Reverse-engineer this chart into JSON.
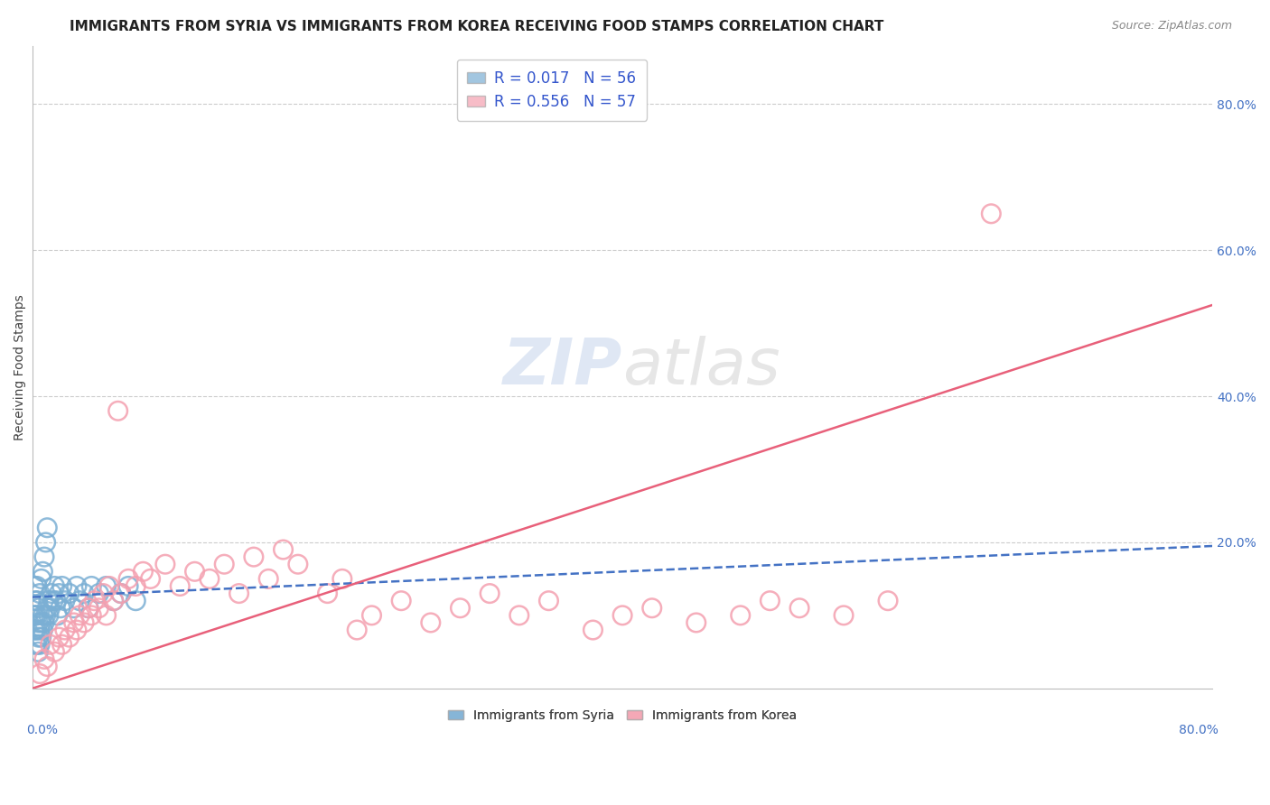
{
  "title": "IMMIGRANTS FROM SYRIA VS IMMIGRANTS FROM KOREA RECEIVING FOOD STAMPS CORRELATION CHART",
  "source": "Source: ZipAtlas.com",
  "ylabel": "Receiving Food Stamps",
  "ylabel_right_ticks": [
    "20.0%",
    "40.0%",
    "60.0%",
    "80.0%"
  ],
  "ylabel_right_vals": [
    0.2,
    0.4,
    0.6,
    0.8
  ],
  "legend_syria": "R =  0.017   N = 56",
  "legend_korea": "R =  0.556   N = 57",
  "legend_label_syria": "Immigrants from Syria",
  "legend_label_korea": "Immigrants from Korea",
  "color_syria": "#7BAFD4",
  "color_korea": "#F4A0B0",
  "color_syria_line": "#4472C4",
  "color_korea_line": "#E8607A",
  "watermark_color": "#D8E4F0",
  "title_fontsize": 11,
  "axis_label_fontsize": 10,
  "xlim": [
    0.0,
    0.8
  ],
  "ylim": [
    0.0,
    0.88
  ],
  "syria_line_x0": 0.0,
  "syria_line_y0": 0.125,
  "syria_line_x1": 0.8,
  "syria_line_y1": 0.195,
  "korea_line_x0": 0.0,
  "korea_line_y0": 0.0,
  "korea_line_x1": 0.8,
  "korea_line_y1": 0.525,
  "syria_x": [
    0.001,
    0.001,
    0.001,
    0.002,
    0.002,
    0.002,
    0.002,
    0.003,
    0.003,
    0.003,
    0.003,
    0.003,
    0.004,
    0.004,
    0.004,
    0.004,
    0.005,
    0.005,
    0.005,
    0.006,
    0.006,
    0.006,
    0.007,
    0.007,
    0.007,
    0.008,
    0.008,
    0.009,
    0.009,
    0.01,
    0.01,
    0.011,
    0.011,
    0.012,
    0.013,
    0.014,
    0.015,
    0.016,
    0.017,
    0.018,
    0.019,
    0.02,
    0.022,
    0.025,
    0.028,
    0.03,
    0.032,
    0.035,
    0.038,
    0.04,
    0.045,
    0.05,
    0.055,
    0.06,
    0.065,
    0.07
  ],
  "syria_y": [
    0.08,
    0.1,
    0.14,
    0.06,
    0.08,
    0.1,
    0.12,
    0.06,
    0.08,
    0.1,
    0.12,
    0.14,
    0.05,
    0.07,
    0.09,
    0.11,
    0.06,
    0.08,
    0.13,
    0.07,
    0.09,
    0.15,
    0.08,
    0.1,
    0.16,
    0.09,
    0.18,
    0.1,
    0.2,
    0.11,
    0.22,
    0.1,
    0.12,
    0.11,
    0.13,
    0.12,
    0.14,
    0.12,
    0.1,
    0.13,
    0.11,
    0.14,
    0.12,
    0.13,
    0.11,
    0.14,
    0.12,
    0.13,
    0.11,
    0.14,
    0.13,
    0.14,
    0.12,
    0.13,
    0.14,
    0.12
  ],
  "korea_x": [
    0.005,
    0.008,
    0.01,
    0.012,
    0.015,
    0.018,
    0.02,
    0.022,
    0.025,
    0.028,
    0.03,
    0.032,
    0.035,
    0.038,
    0.04,
    0.042,
    0.045,
    0.048,
    0.05,
    0.052,
    0.055,
    0.058,
    0.06,
    0.065,
    0.07,
    0.075,
    0.08,
    0.09,
    0.1,
    0.11,
    0.12,
    0.13,
    0.14,
    0.15,
    0.16,
    0.17,
    0.18,
    0.2,
    0.21,
    0.22,
    0.23,
    0.25,
    0.27,
    0.29,
    0.31,
    0.33,
    0.35,
    0.38,
    0.4,
    0.42,
    0.45,
    0.48,
    0.5,
    0.52,
    0.55,
    0.58,
    0.65
  ],
  "korea_y": [
    0.02,
    0.04,
    0.03,
    0.06,
    0.05,
    0.07,
    0.06,
    0.08,
    0.07,
    0.09,
    0.08,
    0.1,
    0.09,
    0.11,
    0.1,
    0.12,
    0.11,
    0.13,
    0.1,
    0.14,
    0.12,
    0.38,
    0.13,
    0.15,
    0.14,
    0.16,
    0.15,
    0.17,
    0.14,
    0.16,
    0.15,
    0.17,
    0.13,
    0.18,
    0.15,
    0.19,
    0.17,
    0.13,
    0.15,
    0.08,
    0.1,
    0.12,
    0.09,
    0.11,
    0.13,
    0.1,
    0.12,
    0.08,
    0.1,
    0.11,
    0.09,
    0.1,
    0.12,
    0.11,
    0.1,
    0.12,
    0.65
  ]
}
